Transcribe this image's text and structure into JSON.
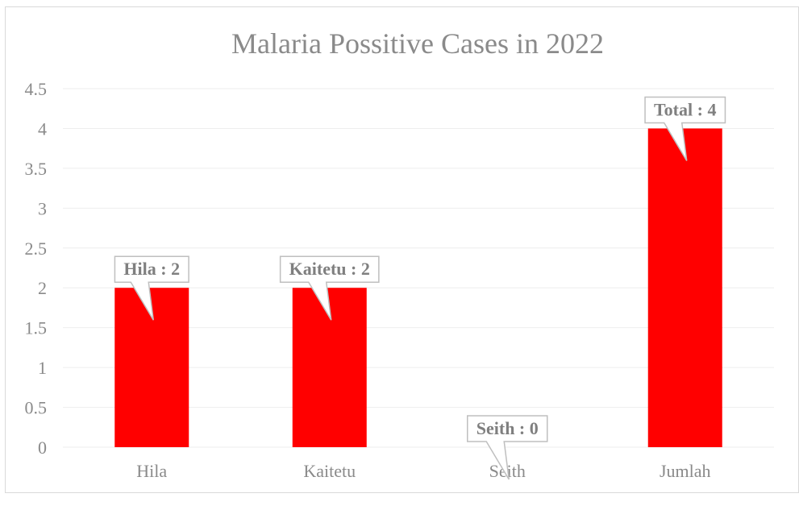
{
  "chart_data": {
    "type": "bar",
    "title": "Malaria Possitive Cases in 2022",
    "categories": [
      "Hila",
      "Kaitetu",
      "Seith",
      "Jumlah"
    ],
    "values": [
      2,
      2,
      0,
      4
    ],
    "data_labels": [
      "Hila : 2",
      "Kaitetu : 2",
      "Seith : 0",
      "Total : 4"
    ],
    "ylim": [
      0,
      4.5
    ],
    "y_ticks": [
      "0",
      "0.5",
      "1",
      "1.5",
      "2",
      "2.5",
      "3",
      "3.5",
      "4",
      "4.5"
    ],
    "xlabel": "",
    "ylabel": "",
    "grid": true,
    "bar_color": "#ff0000"
  }
}
